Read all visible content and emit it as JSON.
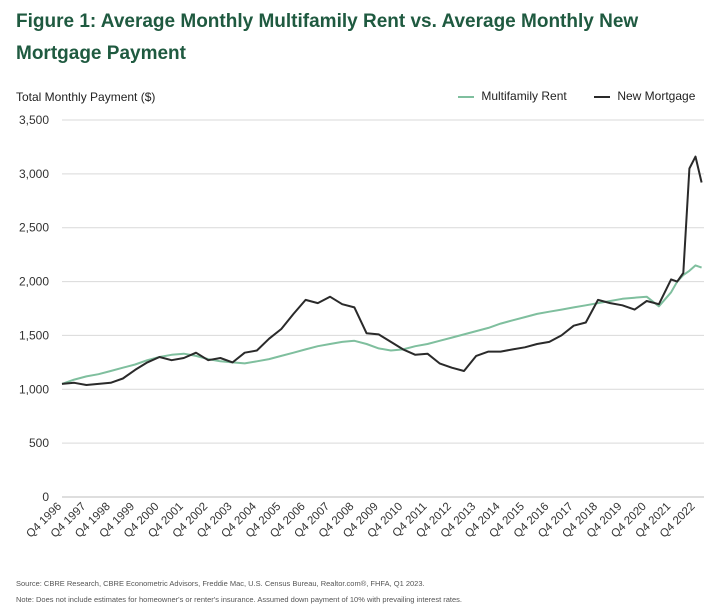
{
  "title": "Figure 1: Average Monthly Multifamily Rent vs. Average Monthly New Mortgage Payment",
  "source": "Source: CBRE Research, CBRE Econometric Advisors, Freddie Mac, U.S. Census Bureau, Realtor.com®, FHFA, Q1 2023.",
  "note": "Note: Does not include estimates for homeowner's or renter's insurance. Assumed down payment of 10% with prevailing interest rates.",
  "colors": {
    "rent": "#7fbf9e",
    "mortgage": "#2a2a2a",
    "title": "#1f5a40",
    "grid": "#d9d9d9"
  },
  "chart_data": {
    "type": "line",
    "title": "Figure 1: Average Monthly Multifamily Rent vs. Average Monthly New Mortgage Payment",
    "ylabel": "Total Monthly Payment ($)",
    "xlabel": "",
    "ylim": [
      0,
      3500
    ],
    "yticks": [
      0,
      500,
      1000,
      1500,
      2000,
      2500,
      3000,
      3500
    ],
    "ytick_labels": [
      "0",
      "500",
      "1,000",
      "1,500",
      "2,000",
      "2,500",
      "3,000",
      "3,500"
    ],
    "grid": "horizontal",
    "legend": "top-right",
    "categories": [
      "Q4 1996",
      "Q4 1997",
      "Q4 1998",
      "Q4 1999",
      "Q4 2000",
      "Q4 2001",
      "Q4 2002",
      "Q4 2003",
      "Q4 2004",
      "Q4 2005",
      "Q4 2006",
      "Q4 2007",
      "Q4 2008",
      "Q4 2009",
      "Q4 2010",
      "Q4 2011",
      "Q4 2012",
      "Q4 2013",
      "Q4 2014",
      "Q4 2015",
      "Q4 2016",
      "Q4 2017",
      "Q4 2018",
      "Q4 2019",
      "Q4 2020",
      "Q4 2021",
      "Q4 2022"
    ],
    "x": [
      1996,
      1996.5,
      1997,
      1997.5,
      1998,
      1998.5,
      1999,
      1999.5,
      2000,
      2000.5,
      2001,
      2001.5,
      2002,
      2002.5,
      2003,
      2003.5,
      2004,
      2004.5,
      2005,
      2005.5,
      2006,
      2006.5,
      2007,
      2007.5,
      2008,
      2008.5,
      2009,
      2009.5,
      2010,
      2010.5,
      2011,
      2011.5,
      2012,
      2012.5,
      2013,
      2013.5,
      2014,
      2014.5,
      2015,
      2015.5,
      2016,
      2016.5,
      2017,
      2017.5,
      2018,
      2018.5,
      2019,
      2019.5,
      2020,
      2020.5,
      2021,
      2021.25,
      2021.5,
      2021.75,
      2022,
      2022.25
    ],
    "series": [
      {
        "name": "Multifamily Rent",
        "values": [
          1050,
          1090,
          1120,
          1140,
          1170,
          1200,
          1230,
          1270,
          1300,
          1320,
          1330,
          1310,
          1280,
          1260,
          1250,
          1240,
          1260,
          1280,
          1310,
          1340,
          1370,
          1400,
          1420,
          1440,
          1450,
          1420,
          1380,
          1360,
          1370,
          1400,
          1420,
          1450,
          1480,
          1510,
          1540,
          1570,
          1610,
          1640,
          1670,
          1700,
          1720,
          1740,
          1760,
          1780,
          1800,
          1820,
          1840,
          1850,
          1860,
          1770,
          1900,
          2000,
          2060,
          2100,
          2150,
          2130
        ]
      },
      {
        "name": "New Mortgage",
        "values": [
          1050,
          1060,
          1040,
          1050,
          1060,
          1100,
          1180,
          1250,
          1300,
          1270,
          1290,
          1340,
          1270,
          1290,
          1250,
          1340,
          1360,
          1470,
          1560,
          1700,
          1830,
          1800,
          1860,
          1790,
          1760,
          1520,
          1510,
          1440,
          1370,
          1320,
          1330,
          1240,
          1200,
          1170,
          1310,
          1350,
          1350,
          1370,
          1390,
          1420,
          1440,
          1500,
          1590,
          1620,
          1830,
          1800,
          1780,
          1740,
          1820,
          1790,
          2020,
          2000,
          2080,
          3050,
          3160,
          2920
        ]
      }
    ]
  }
}
